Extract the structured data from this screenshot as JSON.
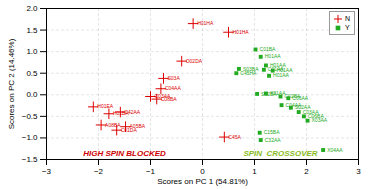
{
  "chart_data": {
    "type": "scatter",
    "xlabel": "Scores on PC 1 (54.81%)",
    "ylabel": "Scores on PC 2 (14.46%)",
    "xlim": [
      -3,
      3
    ],
    "ylim": [
      -1.5,
      2.0
    ],
    "xticks": [
      -3,
      -2,
      -1,
      0,
      1,
      2,
      3
    ],
    "yticks": [
      {
        "value": -1.5,
        "label": "−1.5"
      },
      {
        "value": -1.0,
        "label": "−1.0"
      },
      {
        "value": -0.5,
        "label": "−0.5"
      },
      {
        "value": 0.0,
        "label": "0.0"
      },
      {
        "value": 0.5,
        "label": "0.5"
      },
      {
        "value": 1.0,
        "label": "1.0"
      },
      {
        "value": 1.5,
        "label": "1.5"
      },
      {
        "value": 2.0,
        "label": "2.0"
      }
    ],
    "grid": true,
    "legend": "upper right",
    "series": [
      {
        "name": "N",
        "color": "#dd0000",
        "marker": "plus",
        "x": [
          -0.18,
          0.5,
          -0.4,
          -0.75,
          -0.8,
          -1.0,
          -0.88,
          -2.1,
          -1.8,
          -1.58,
          -1.95,
          -1.48,
          -1.65,
          0.42
        ],
        "y": [
          1.65,
          1.45,
          0.78,
          0.38,
          0.14,
          -0.04,
          -0.1,
          -0.28,
          -0.44,
          -0.4,
          -0.7,
          -0.74,
          -0.82,
          -0.98
        ],
        "labels": [
          "H01HA",
          "H01HA",
          "O02DA",
          "S03A",
          "C04AA",
          "C03AA",
          "C08BA",
          "H01EA",
          "H01BA",
          "C42AA",
          "A08BA",
          "A05BA",
          "C01DA",
          "C45A"
        ]
      },
      {
        "name": "Y",
        "color": "#22aa22",
        "marker": "square",
        "x": [
          0.7,
          0.65,
          1.02,
          1.12,
          1.22,
          1.18,
          1.35,
          1.28,
          1.05,
          1.22,
          1.5,
          1.65,
          1.52,
          1.7,
          1.85,
          1.95,
          2.02,
          1.1,
          1.12,
          2.32
        ],
        "y": [
          0.6,
          0.5,
          1.05,
          0.88,
          0.68,
          0.58,
          0.56,
          0.44,
          0.02,
          0.03,
          -0.04,
          -0.08,
          -0.24,
          -0.3,
          -0.4,
          -0.5,
          -0.6,
          -0.88,
          -1.05,
          -1.28
        ],
        "labels": [
          "S03BA",
          "C45HA",
          "C01BA",
          "H01AA",
          "H01AA",
          "C01AA",
          "H01AA",
          "H01AA",
          "S02BA",
          "X01AA",
          "C02BA",
          "C06AA",
          "C04AA",
          "S02AA",
          "C03AA",
          "C06BA",
          "X03AA",
          "C15BA",
          "C32AA",
          "X04AA"
        ]
      }
    ],
    "annotations": [
      {
        "text": "HIGH SPIN BLOCKED",
        "x": -1.5,
        "y": -1.42,
        "color": "#cc0000"
      },
      {
        "text": "SPIN  CROSSOVER",
        "x": 1.5,
        "y": -1.42,
        "color": "#88bb22"
      }
    ]
  }
}
